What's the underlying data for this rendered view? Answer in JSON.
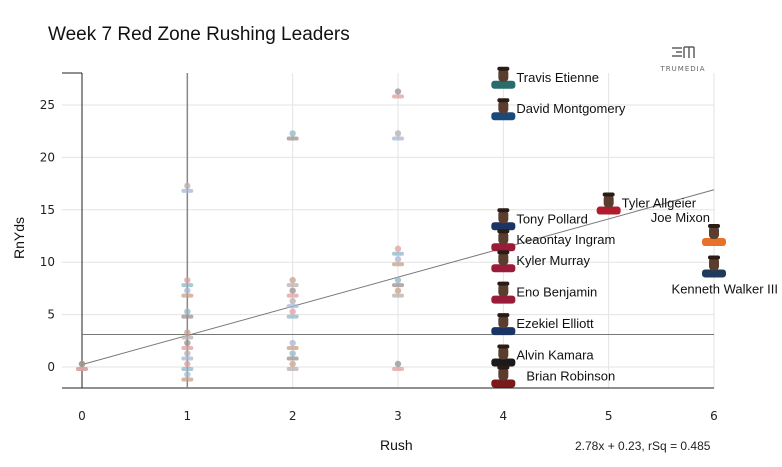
{
  "header": {
    "title": "Week 7 Red Zone Rushing Leaders",
    "brand": "TRUMEDIA"
  },
  "chart_data": {
    "type": "scatter",
    "title": "Week 7 Red Zone Rushing Leaders",
    "xlabel": "Rush",
    "ylabel": "RnYds",
    "xlim": [
      0,
      6
    ],
    "ylim": [
      -2,
      28
    ],
    "x_ticks": [
      0,
      1,
      2,
      3,
      4,
      5,
      6
    ],
    "y_ticks": [
      0,
      5,
      10,
      15,
      20,
      25
    ],
    "grid": true,
    "regression": {
      "slope": 2.78,
      "intercept": 0.23,
      "r_squared": 0.485,
      "label": "2.78x + 0.23, rSq = 0.485"
    },
    "reference_line_y": 3.1,
    "labeled_points": [
      {
        "name": "Travis Etienne",
        "x": 4,
        "y": 27.5,
        "color": "#2a6b6b"
      },
      {
        "name": "David Montgomery",
        "x": 4,
        "y": 24.5,
        "color": "#1b4a7a"
      },
      {
        "name": "Tyler Allgeier",
        "x": 5,
        "y": 15.5,
        "color": "#b01c2e"
      },
      {
        "name": "Joe Mixon",
        "x": 6,
        "y": 12.5,
        "color": "#e8712a"
      },
      {
        "name": "Tony Pollard",
        "x": 4,
        "y": 14,
        "color": "#1a3466"
      },
      {
        "name": "Keaontay Ingram",
        "x": 4,
        "y": 12,
        "color": "#9b1b3a"
      },
      {
        "name": "Kyler Murray",
        "x": 4,
        "y": 10,
        "color": "#9b1b3a"
      },
      {
        "name": "Kenneth Walker III",
        "x": 6,
        "y": 9.5,
        "color": "#1f3a5a"
      },
      {
        "name": "Eno Benjamin",
        "x": 4,
        "y": 7,
        "color": "#9b1b3a"
      },
      {
        "name": "Ezekiel Elliott",
        "x": 4,
        "y": 4,
        "color": "#1a3466"
      },
      {
        "name": "Alvin Kamara",
        "x": 4,
        "y": 1,
        "color": "#1a1a1a"
      },
      {
        "name": "Brian Robinson",
        "x": 4,
        "y": -1,
        "color": "#7a1a1a"
      }
    ],
    "unlabeled_points": [
      {
        "x": 0,
        "y": 0
      },
      {
        "x": 0,
        "y": 0
      },
      {
        "x": 1,
        "y": 17
      },
      {
        "x": 1,
        "y": 8
      },
      {
        "x": 1,
        "y": 7
      },
      {
        "x": 1,
        "y": 5
      },
      {
        "x": 1,
        "y": 3
      },
      {
        "x": 1,
        "y": 2
      },
      {
        "x": 1,
        "y": 1
      },
      {
        "x": 1,
        "y": 0
      },
      {
        "x": 1,
        "y": -1
      },
      {
        "x": 2,
        "y": 22
      },
      {
        "x": 2,
        "y": 8
      },
      {
        "x": 2,
        "y": 7
      },
      {
        "x": 2,
        "y": 6
      },
      {
        "x": 2,
        "y": 5
      },
      {
        "x": 2,
        "y": 2
      },
      {
        "x": 2,
        "y": 1
      },
      {
        "x": 2,
        "y": 0
      },
      {
        "x": 3,
        "y": 26
      },
      {
        "x": 3,
        "y": 22
      },
      {
        "x": 3,
        "y": 11
      },
      {
        "x": 3,
        "y": 10
      },
      {
        "x": 3,
        "y": 8
      },
      {
        "x": 3,
        "y": 7
      },
      {
        "x": 3,
        "y": 0
      }
    ]
  }
}
